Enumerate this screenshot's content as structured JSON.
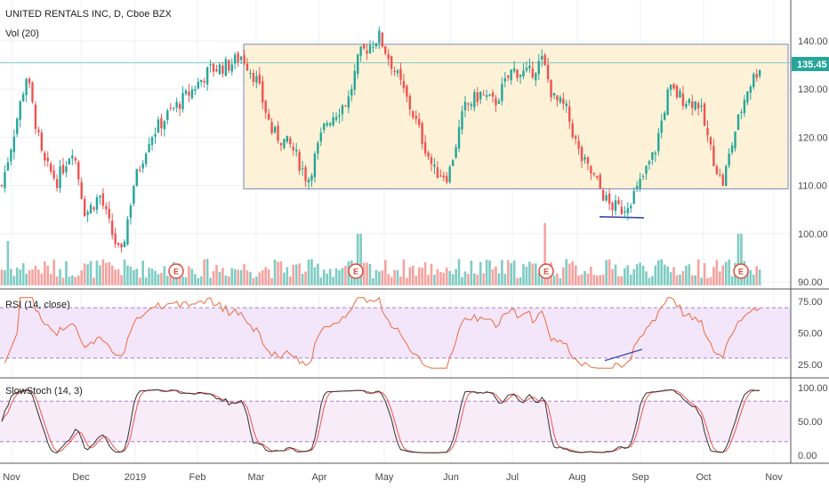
{
  "header": {
    "title": "UNITED RENTALS INC, D, Cboe BZX",
    "volume_label": "Vol (20)"
  },
  "price_label": "135.45",
  "rsi_title": "RSI (14, close)",
  "stoch_title": "SlowStoch (14, 3)",
  "colors": {
    "up": "#26a69a",
    "down": "#ef5350",
    "vol_up": "#7fccc3",
    "vol_down": "#f5a3a0",
    "box_fill": "#fdf2d8",
    "box_stroke": "#7a86b8",
    "level_line": "#7ecbbf",
    "price_badge": "#26a69a",
    "rsi_band": "#f3e6fb",
    "rsi_line": "#ef6a3a",
    "stoch_k": "#333333",
    "stoch_d": "#ef5350",
    "earnings": "#e04a3a"
  },
  "chart_data": [
    {
      "type": "candlestick",
      "title": "UNITED RENTALS INC, D, Cboe BZX",
      "x_ticks": [
        "Nov",
        "Dec",
        "2019",
        "Feb",
        "Mar",
        "Apr",
        "May",
        "Jun",
        "Jul",
        "Aug",
        "Sep",
        "Oct",
        "Nov"
      ],
      "y_ticks": [
        "140.00",
        "130.00",
        "120.00",
        "110.00",
        "100.00",
        "90.00"
      ],
      "ylim": [
        89,
        145
      ],
      "last_price": 135.45,
      "approx_close_path": [
        [
          "Nov",
          110
        ],
        [
          "Nov",
          133
        ],
        [
          "Nov",
          115
        ],
        [
          "Dec",
          111
        ],
        [
          "Dec",
          103
        ],
        [
          "Dec",
          94
        ],
        [
          "2019",
          110
        ],
        [
          "2019",
          120
        ],
        [
          "Feb",
          129
        ],
        [
          "Feb",
          133
        ],
        [
          "Mar",
          137
        ],
        [
          "Mar",
          120
        ],
        [
          "Apr",
          111
        ],
        [
          "Apr",
          127
        ],
        [
          "May",
          142
        ],
        [
          "May",
          133
        ],
        [
          "Jun",
          112
        ],
        [
          "Jun",
          128
        ],
        [
          "Jul",
          134
        ],
        [
          "Jul",
          136
        ],
        [
          "Aug",
          128
        ],
        [
          "Aug",
          112
        ],
        [
          "Aug",
          104
        ],
        [
          "Sep",
          112
        ],
        [
          "Sep",
          131
        ],
        [
          "Oct",
          123
        ],
        [
          "Oct",
          111
        ],
        [
          "Oct",
          124
        ],
        [
          "Oct",
          135.45
        ]
      ],
      "range_box": {
        "top": 139.3,
        "bottom": 109.3,
        "from": "Mar",
        "to": "Nov"
      },
      "earnings_markers": [
        "E",
        "E",
        "E",
        "E"
      ]
    },
    {
      "type": "line",
      "title": "RSI (14, close)",
      "y_ticks": [
        "75.00",
        "50.00",
        "25.00"
      ],
      "ylim": [
        15,
        80
      ],
      "bands": [
        70,
        30
      ]
    },
    {
      "type": "line",
      "title": "SlowStoch (14, 3)",
      "y_ticks": [
        "100.00",
        "50.00",
        "0.00"
      ],
      "ylim": [
        -5,
        105
      ],
      "bands": [
        80,
        20
      ]
    }
  ]
}
